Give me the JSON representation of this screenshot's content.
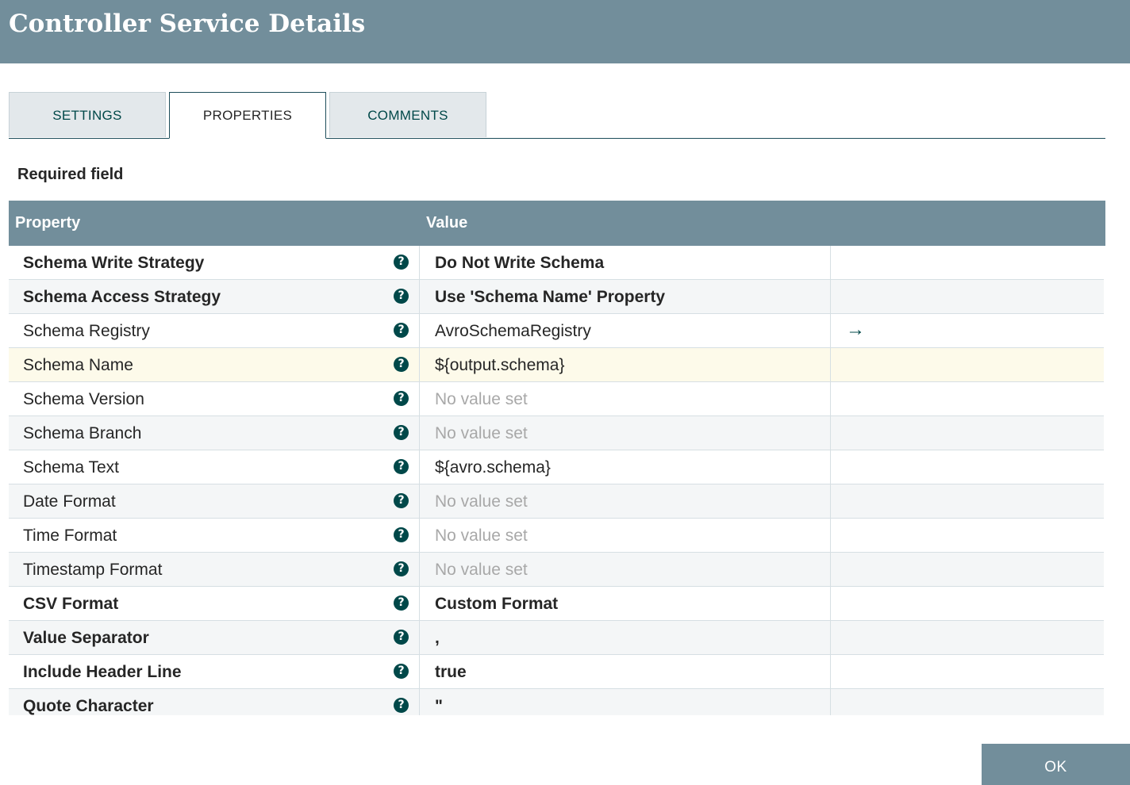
{
  "dialog": {
    "title": "Controller Service Details",
    "tabs": [
      {
        "label": "SETTINGS",
        "active": false
      },
      {
        "label": "PROPERTIES",
        "active": true
      },
      {
        "label": "COMMENTS",
        "active": false
      }
    ],
    "required_note": "Required field",
    "columns": {
      "property": "Property",
      "value": "Value"
    },
    "help_icon": "question-circle-icon",
    "goto_icon": "arrow-right-icon",
    "properties": [
      {
        "name": "Schema Write Strategy",
        "value": "Do Not Write Schema",
        "required": true,
        "unset": false
      },
      {
        "name": "Schema Access Strategy",
        "value": "Use 'Schema Name' Property",
        "required": true,
        "unset": false
      },
      {
        "name": "Schema Registry",
        "value": "AvroSchemaRegistry",
        "required": false,
        "unset": false,
        "has_goto": true
      },
      {
        "name": "Schema Name",
        "value": "${output.schema}",
        "required": false,
        "unset": false,
        "selected": true
      },
      {
        "name": "Schema Version",
        "value": "No value set",
        "required": false,
        "unset": true
      },
      {
        "name": "Schema Branch",
        "value": "No value set",
        "required": false,
        "unset": true
      },
      {
        "name": "Schema Text",
        "value": "${avro.schema}",
        "required": false,
        "unset": false
      },
      {
        "name": "Date Format",
        "value": "No value set",
        "required": false,
        "unset": true
      },
      {
        "name": "Time Format",
        "value": "No value set",
        "required": false,
        "unset": true
      },
      {
        "name": "Timestamp Format",
        "value": "No value set",
        "required": false,
        "unset": true
      },
      {
        "name": "CSV Format",
        "value": "Custom Format",
        "required": true,
        "unset": false
      },
      {
        "name": "Value Separator",
        "value": ",",
        "required": true,
        "unset": false
      },
      {
        "name": "Include Header Line",
        "value": "true",
        "required": true,
        "unset": false
      },
      {
        "name": "Quote Character",
        "value": "\"",
        "required": true,
        "unset": false
      }
    ],
    "ok_label": "OK",
    "colors": {
      "header": "#728e9b",
      "accent": "#004849",
      "selected_row": "#fdfaea"
    }
  }
}
